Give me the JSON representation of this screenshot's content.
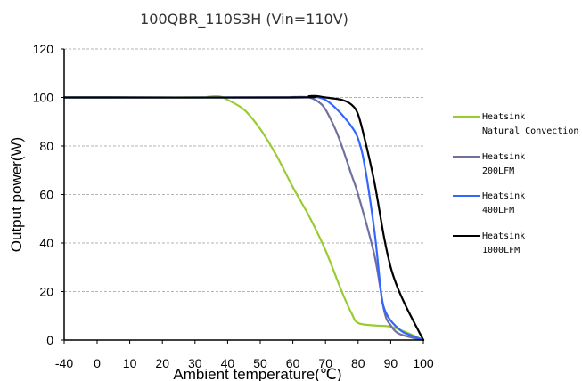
{
  "chart_data": {
    "type": "line",
    "title": "100QBR_110S3H (Vin=110V)",
    "xlabel": "Ambient temperature(℃)",
    "ylabel": "Output power(W)",
    "xlim": [
      -40,
      100
    ],
    "ylim": [
      0,
      120
    ],
    "x_ticks": [
      -40,
      0,
      10,
      20,
      30,
      40,
      50,
      60,
      70,
      80,
      90,
      100
    ],
    "x_tick_labels": [
      "-40",
      "0",
      "10",
      "20",
      "30",
      "40",
      "50",
      "60",
      "70",
      "80",
      "90",
      "100"
    ],
    "y_ticks": [
      0,
      20,
      40,
      60,
      80,
      100,
      120
    ],
    "y_tick_labels": [
      "0",
      "20",
      "40",
      "60",
      "80",
      "100",
      "120"
    ],
    "grid": "horizontal dashed",
    "legend_position": "right",
    "series": [
      {
        "name": "Heatsink Natural Convection",
        "legend_lines": [
          "Heatsink",
          "Natural Convection"
        ],
        "color": "#99cc33",
        "x": [
          -40,
          30,
          34,
          36,
          38,
          40,
          45,
          50,
          55,
          60,
          65,
          70,
          75,
          78,
          80,
          85,
          90,
          95,
          100
        ],
        "y": [
          100,
          100,
          100.3,
          100.5,
          100.3,
          99,
          95,
          87,
          76,
          63,
          51,
          37,
          20,
          11,
          7,
          6,
          5.5,
          3,
          0
        ]
      },
      {
        "name": "Heatsink 200LFM",
        "legend_lines": [
          "Heatsink",
          "200LFM"
        ],
        "color": "#7070a0",
        "x": [
          -40,
          55,
          60,
          65,
          68,
          70,
          73,
          75,
          78,
          80,
          85,
          88,
          90,
          92,
          95,
          100
        ],
        "y": [
          100,
          100,
          100.2,
          100,
          98,
          95,
          87,
          80,
          68,
          60,
          35,
          12,
          6,
          3,
          1.5,
          0
        ]
      },
      {
        "name": "Heatsink 400LFM",
        "legend_lines": [
          "Heatsink",
          "400LFM"
        ],
        "color": "#3366ff",
        "x": [
          -40,
          60,
          65,
          68,
          70,
          72,
          75,
          78,
          80,
          82,
          85,
          87,
          88,
          90,
          93,
          95,
          100
        ],
        "y": [
          100,
          100,
          100.3,
          100,
          99,
          97,
          93,
          88,
          83,
          72,
          45,
          20,
          13,
          8,
          4,
          2.5,
          0
        ]
      },
      {
        "name": "Heatsink 1000LFM",
        "legend_lines": [
          "Heatsink",
          "1000LFM"
        ],
        "color": "#000000",
        "x": [
          -40,
          60,
          65,
          67,
          70,
          75,
          78,
          80,
          82,
          85,
          88,
          90,
          92,
          95,
          100
        ],
        "y": [
          100,
          100,
          100.5,
          100.6,
          100,
          99,
          97,
          93,
          83,
          65,
          42,
          30,
          22,
          13,
          0
        ]
      }
    ]
  }
}
